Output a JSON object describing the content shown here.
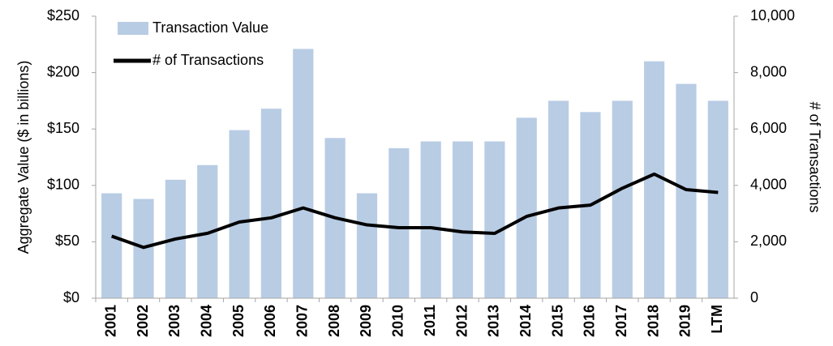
{
  "chart_data": {
    "type": "bar_line",
    "y_label": "Aggregate Value ($ in billions)",
    "y2_label": "# of Transactions",
    "categories": [
      "2001",
      "2002",
      "2003",
      "2004",
      "2005",
      "2006",
      "2007",
      "2008",
      "2009",
      "2010",
      "2011",
      "2012",
      "2013",
      "2014",
      "2015",
      "2016",
      "2017",
      "2018",
      "2019",
      "LTM"
    ],
    "series": [
      {
        "name": "Transaction Value",
        "type": "bar",
        "color": "#b8cce4",
        "values": [
          93,
          88,
          105,
          118,
          149,
          168,
          221,
          142,
          93,
          133,
          139,
          139,
          139,
          160,
          175,
          165,
          175,
          210,
          190,
          175
        ]
      },
      {
        "name": "# of Transactions",
        "type": "line",
        "color": "#000000",
        "axis": "y2",
        "values": [
          2200,
          1800,
          2100,
          2300,
          2700,
          2850,
          3200,
          2850,
          2600,
          2500,
          2500,
          2350,
          2300,
          2900,
          3200,
          3300,
          3900,
          4400,
          3850,
          3750
        ]
      }
    ],
    "ylim": [
      0,
      250
    ],
    "yticks": [
      {
        "value": 0,
        "label": "$0"
      },
      {
        "value": 50,
        "label": "$50"
      },
      {
        "value": 100,
        "label": "$100"
      },
      {
        "value": 150,
        "label": "$150"
      },
      {
        "value": 200,
        "label": "$200"
      },
      {
        "value": 250,
        "label": "$250"
      }
    ],
    "y2lim": [
      0,
      10000
    ],
    "y2ticks": [
      0,
      {
        "value": 2000,
        "label": "2,000"
      },
      {
        "value": 4000,
        "label": "4,000"
      },
      {
        "value": 6000,
        "label": "6,000"
      },
      {
        "value": 8000,
        "label": "8,000"
      },
      {
        "value": 10000,
        "label": "10,000"
      }
    ],
    "legend": "top-left",
    "grid": false
  }
}
